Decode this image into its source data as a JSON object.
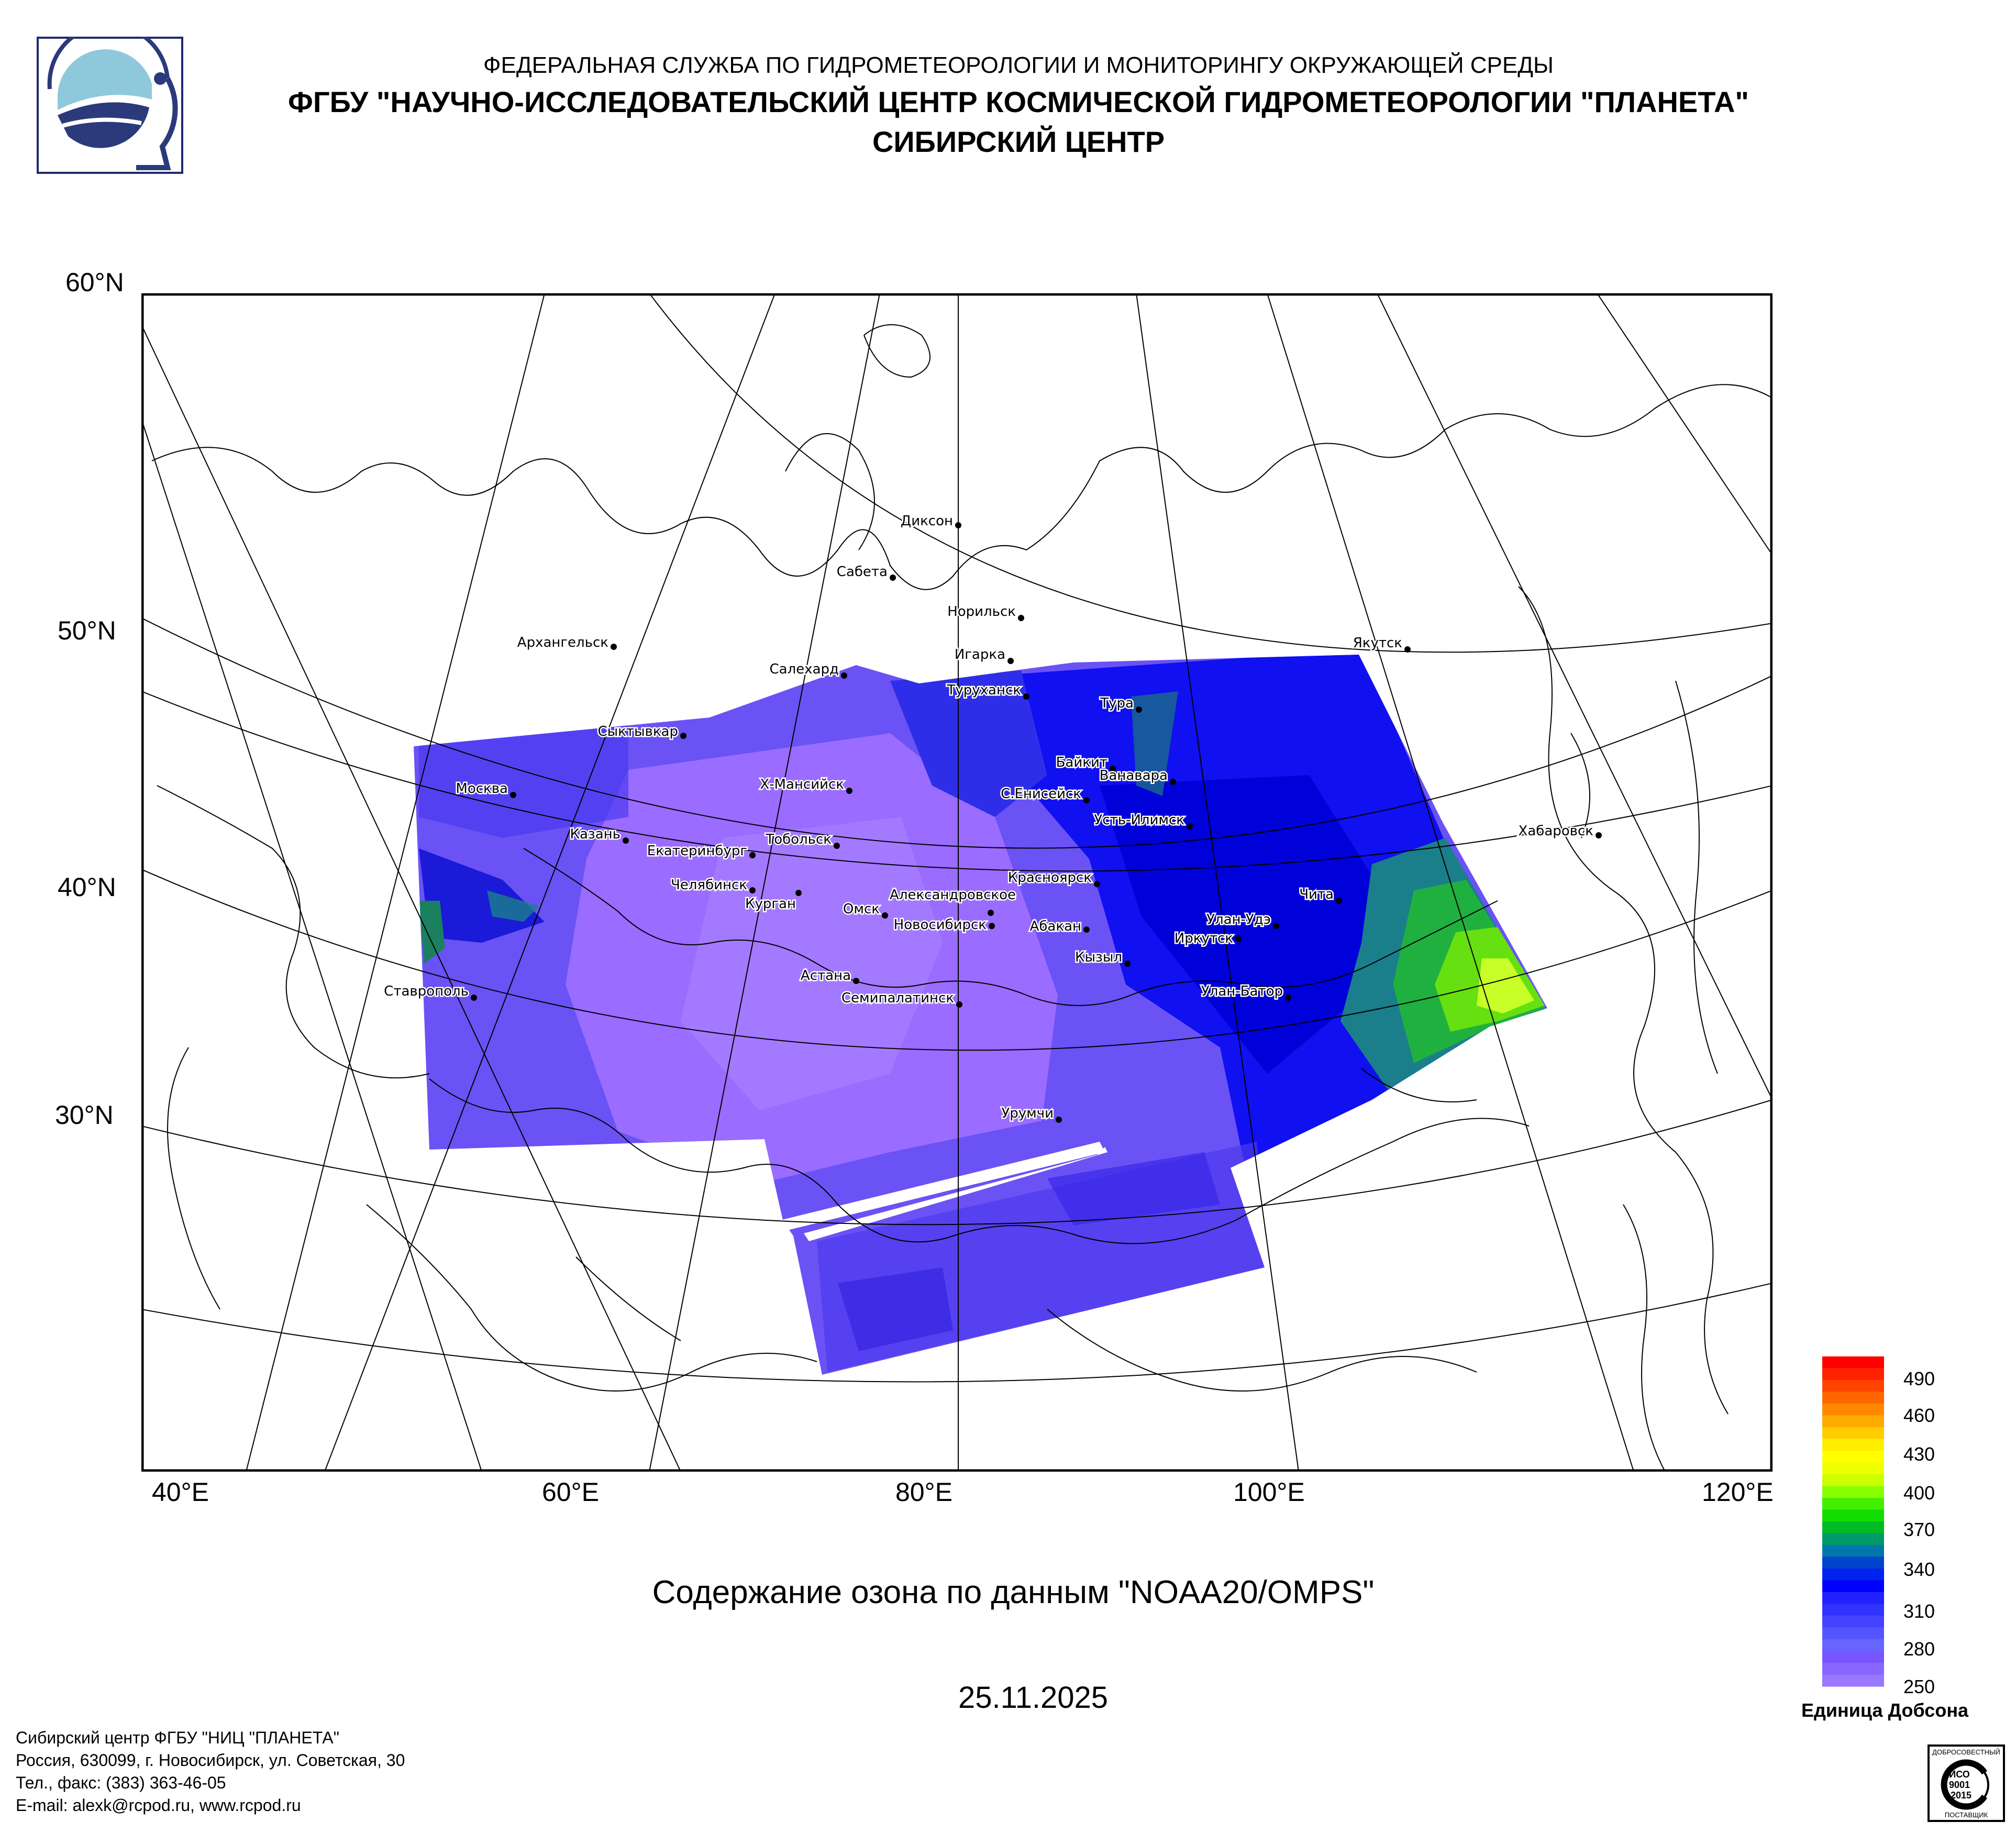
{
  "header": {
    "line1": "ФЕДЕРАЛЬНАЯ СЛУЖБА ПО ГИДРОМЕТЕОРОЛОГИИ И МОНИТОРИНГУ ОКРУЖАЮЩЕЙ СРЕДЫ",
    "line2": "ФГБУ \"НАУЧНО-ИССЛЕДОВАТЕЛЬСКИЙ ЦЕНТР КОСМИЧЕСКОЙ ГИДРОМЕТЕОРОЛОГИИ \"ПЛАНЕТА\"",
    "line3": "СИБИРСКИЙ ЦЕНТР",
    "logo": "planeta-logo"
  },
  "map": {
    "lat_labels": [
      "60°N",
      "50°N",
      "40°N",
      "30°N"
    ],
    "lon_labels": [
      "40°E",
      "60°E",
      "80°E",
      "100°E",
      "120°E"
    ],
    "cities": [
      "Диксон",
      "Сабета",
      "Норильск",
      "Архангельск",
      "Игарка",
      "Салехард",
      "Туруханск",
      "Якутск",
      "Тура",
      "Сыктывкар",
      "Байкит",
      "Ванавара",
      "Москва",
      "Х-Мансийск",
      "С.Енисейск",
      "Усть-Илимск",
      "Казань",
      "Тобольск",
      "Екатеринбург",
      "Хабаровск",
      "Красноярск",
      "Челябинск",
      "Александровское",
      "Чита",
      "Курган",
      "Омск",
      "Улан-Удэ",
      "Новосибирск",
      "Абакан",
      "Иркутск",
      "Кызыл",
      "Астана",
      "Ставрополь",
      "Улан-Батор",
      "Семипалатинск",
      "Урумчи"
    ],
    "colors": {
      "low": "#9966ff",
      "mid": "#0000ee",
      "teal": "#1f7f7f",
      "green": "#22cc22",
      "yellow": "#eeff22"
    }
  },
  "title": "Содержание озона по данным \"NOAA20/OMPS\"",
  "date": "25.11.2025",
  "colorbar": {
    "labels": [
      "490",
      "460",
      "430",
      "400",
      "370",
      "340",
      "310",
      "280",
      "250"
    ],
    "unit": "Единица Добсона",
    "colors": [
      "#ff0000",
      "#ff2200",
      "#ff4400",
      "#ff6600",
      "#ff8800",
      "#ffaa00",
      "#ffcc00",
      "#ffee00",
      "#ffff00",
      "#eeff00",
      "#ccff00",
      "#88ff00",
      "#44ee00",
      "#11dd00",
      "#00bb22",
      "#00996a",
      "#0077aa",
      "#0044cc",
      "#0022ee",
      "#0000ff",
      "#2222ff",
      "#3333ff",
      "#4444ff",
      "#5555ff",
      "#6666ff",
      "#7755ff",
      "#8866ff",
      "#9977ff"
    ]
  },
  "footer": {
    "line1": "Сибирский центр ФГБУ \"НИЦ \"ПЛАНЕТА\"",
    "line2": "Россия, 630099, г. Новосибирск, ул. Советская, 30",
    "line3": "Тел., факс: (383) 363-46-05",
    "line4": "E-mail: alexk@rcpod.ru, www.rcpod.ru"
  },
  "cert": {
    "top": "ДОБРОСОВЕСТНЫЙ",
    "mid1": "ИСО",
    "mid2": "9001",
    "mid3": "-2015",
    "bottom": "ПОСТАВЩИК"
  }
}
